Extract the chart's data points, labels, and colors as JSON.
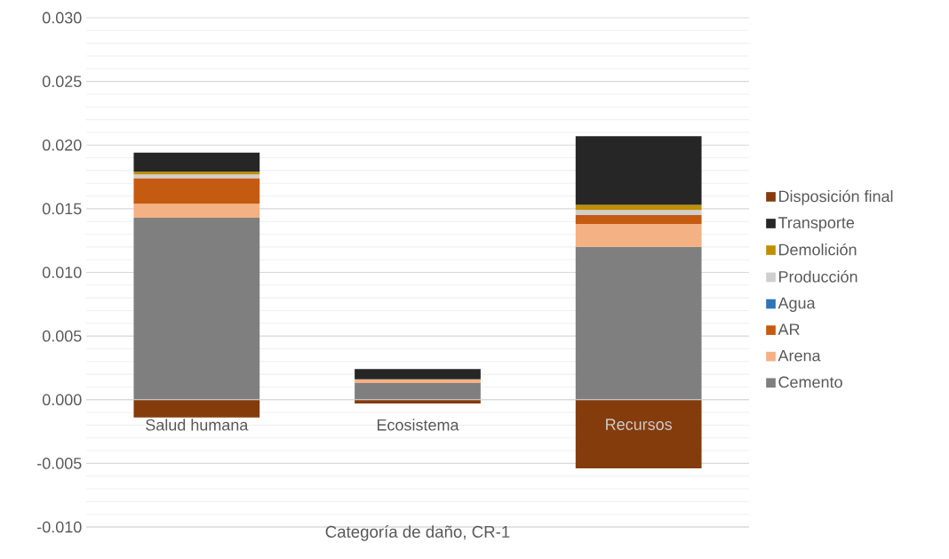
{
  "chart_data": {
    "type": "bar",
    "stacked": true,
    "xlabel": "Categoría de daño, CR-1",
    "categories": [
      "Salud humana",
      "Ecosistema",
      "Recursos"
    ],
    "series": [
      {
        "name": "Cemento",
        "color": "#7f7f7f",
        "values": [
          0.0143,
          0.0013,
          0.012
        ]
      },
      {
        "name": "Arena",
        "color": "#f4b183",
        "values": [
          0.0011,
          0.0003,
          0.0018
        ]
      },
      {
        "name": "AR",
        "color": "#c55a11",
        "values": [
          0.002,
          0.0,
          0.0007
        ]
      },
      {
        "name": "Agua",
        "color": "#2e75b6",
        "values": [
          0.0,
          0.0,
          0.0
        ]
      },
      {
        "name": "Producción",
        "color": "#d0cece",
        "values": [
          0.0003,
          0.0,
          0.0004
        ]
      },
      {
        "name": "Demolición",
        "color": "#bf9000",
        "values": [
          0.0002,
          0.0,
          0.0004
        ]
      },
      {
        "name": "Transporte",
        "color": "#262626",
        "values": [
          0.0015,
          0.0008,
          0.0054
        ]
      },
      {
        "name": "Disposición final",
        "color": "#843c0c",
        "values": [
          -0.0014,
          -0.0003,
          -0.0054
        ]
      }
    ],
    "ylim": [
      -0.01,
      0.03
    ],
    "yticks": [
      {
        "value": -0.01,
        "label": "-0.010"
      },
      {
        "value": -0.005,
        "label": "-0.005"
      },
      {
        "value": 0.0,
        "label": "0.000"
      },
      {
        "value": 0.005,
        "label": "0.005"
      },
      {
        "value": 0.01,
        "label": "0.010"
      },
      {
        "value": 0.015,
        "label": "0.015"
      },
      {
        "value": 0.02,
        "label": "0.020"
      },
      {
        "value": 0.025,
        "label": "0.025"
      },
      {
        "value": 0.03,
        "label": "0.030"
      }
    ],
    "grid": "y",
    "legend": "right"
  }
}
